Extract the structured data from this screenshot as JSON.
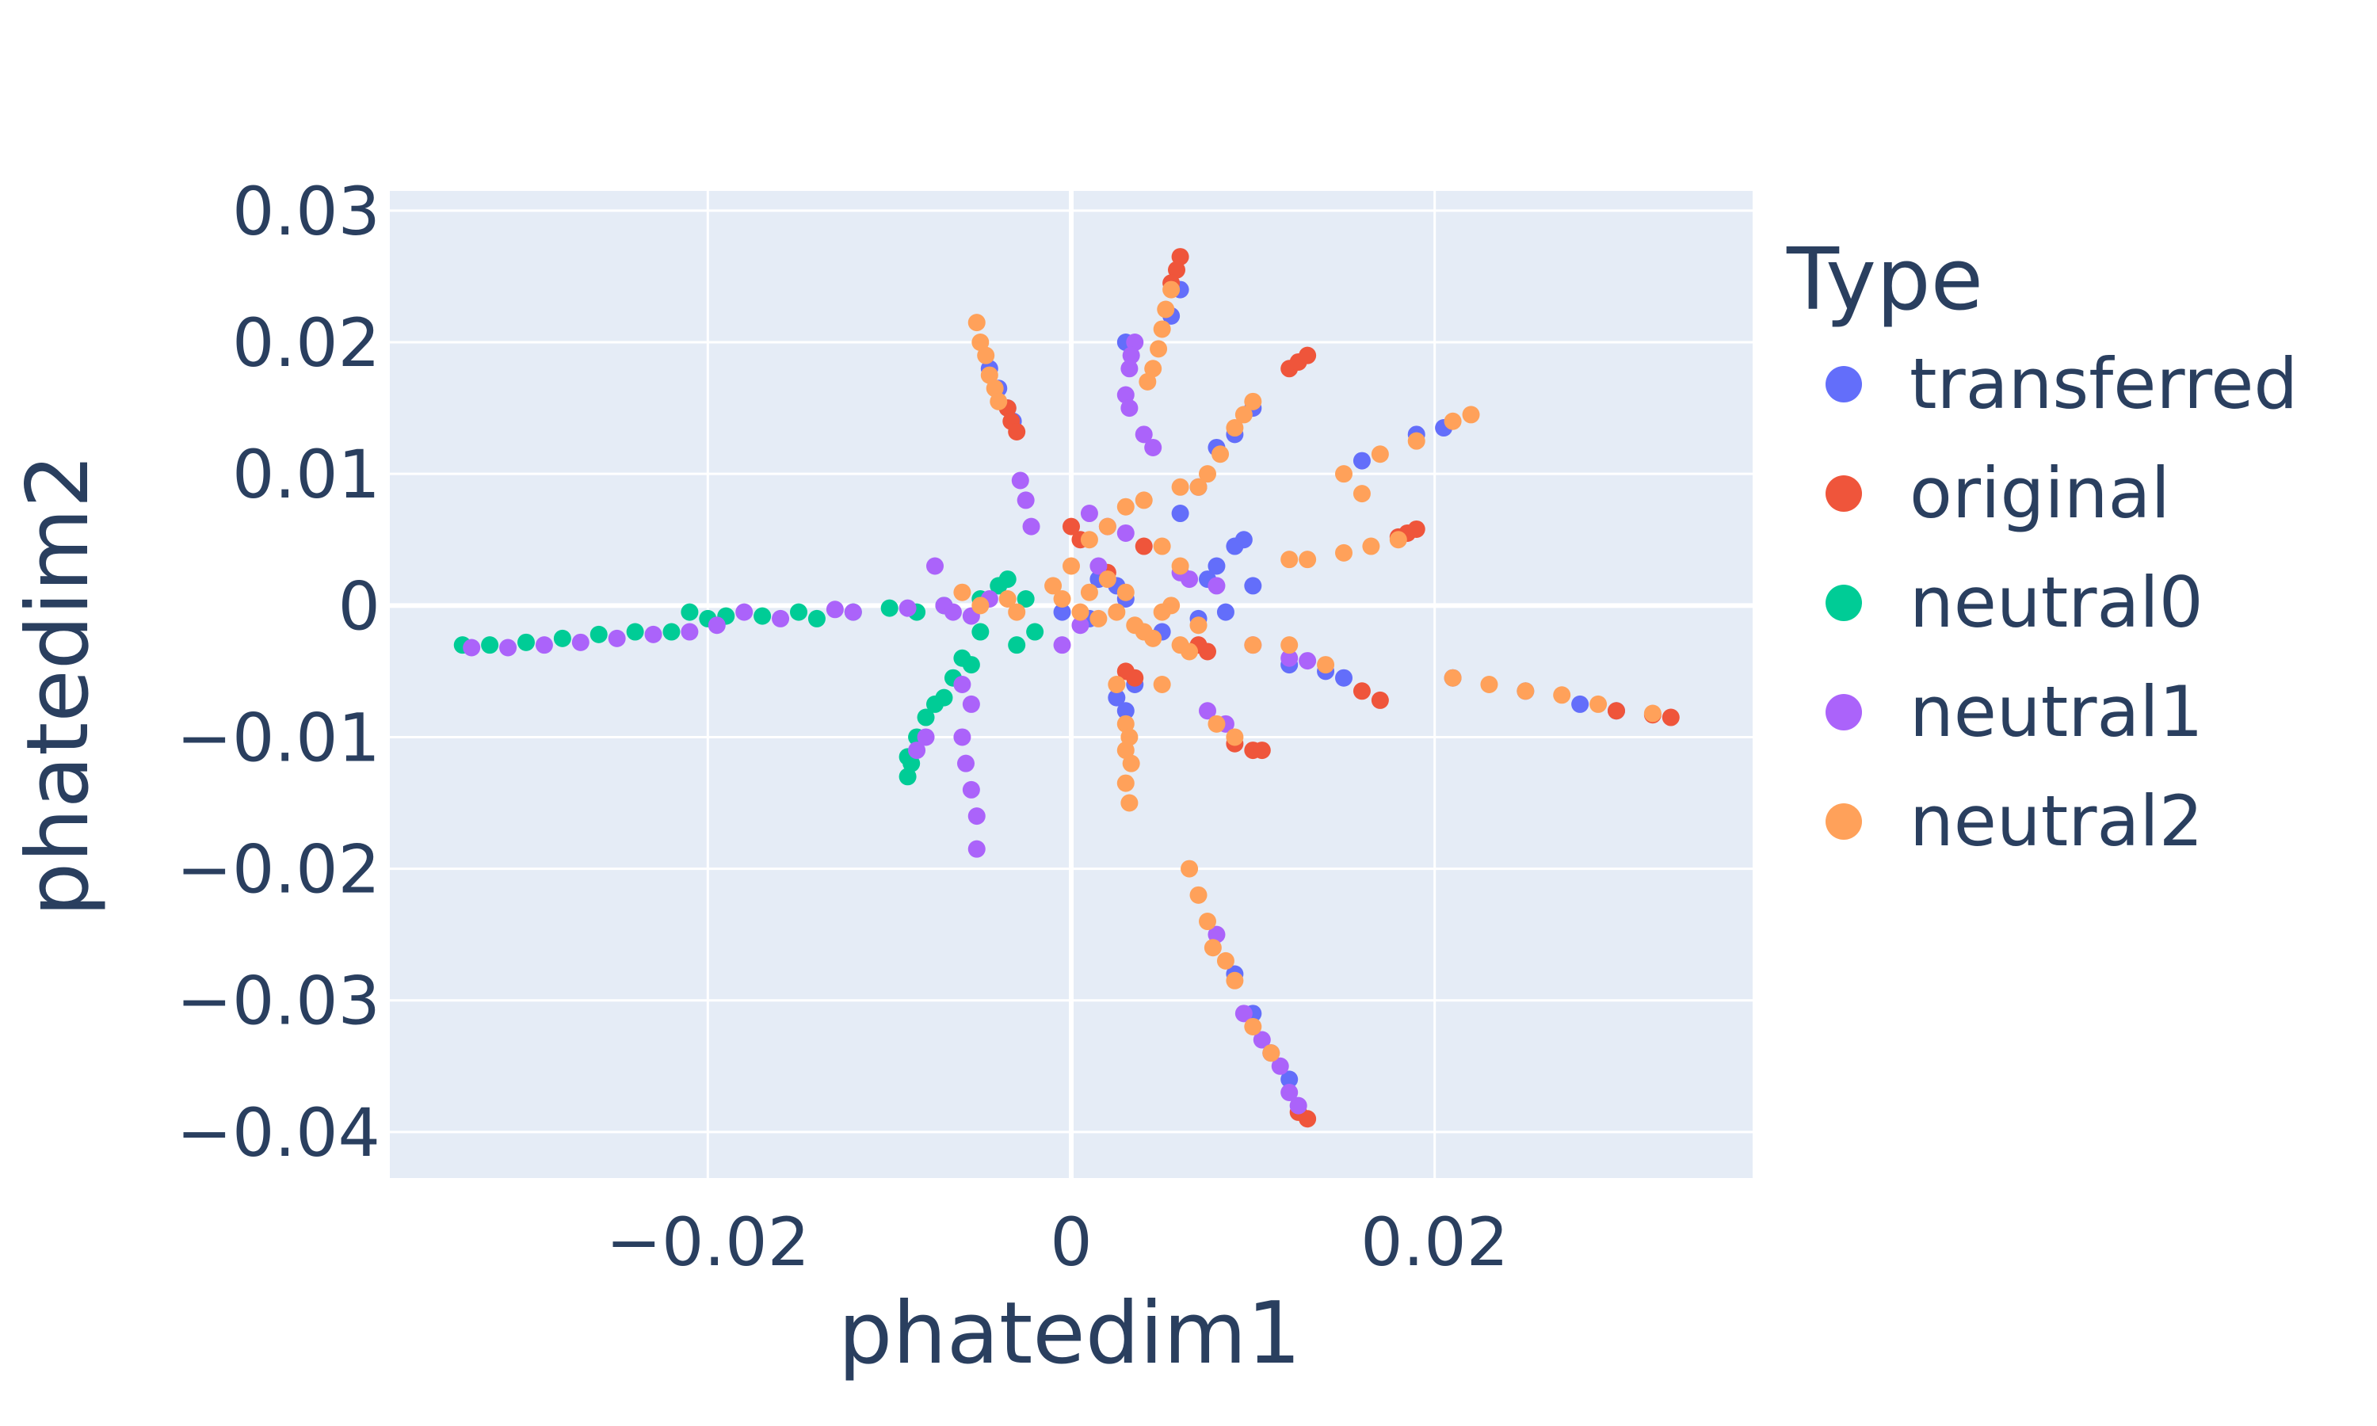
{
  "chart_data": {
    "type": "scatter",
    "xlabel": "phatedim1",
    "ylabel": "phatedim2",
    "xlim": [
      -0.0375,
      0.0375
    ],
    "ylim": [
      -0.0435,
      0.0315
    ],
    "x_ticks": [
      -0.02,
      0,
      0.02
    ],
    "x_tick_labels": [
      "−0.02",
      "0",
      "0.02"
    ],
    "y_ticks": [
      0.03,
      0.02,
      0.01,
      0,
      -0.01,
      -0.02,
      -0.03,
      -0.04
    ],
    "y_tick_labels": [
      "0.03",
      "0.02",
      "0.01",
      "0",
      "−0.01",
      "−0.02",
      "−0.03",
      "−0.04"
    ],
    "grid": true,
    "plot_background": "#e5ecf6",
    "legend": {
      "title": "Type",
      "placement": "right"
    },
    "series": [
      {
        "name": "transferred",
        "color": "#636efa",
        "points": [
          [
            -0.0045,
            0.018
          ],
          [
            -0.004,
            0.0165
          ],
          [
            -0.0035,
            0.015
          ],
          [
            -0.0032,
            0.014
          ],
          [
            0.006,
            0.024
          ],
          [
            0.0055,
            0.022
          ],
          [
            0.003,
            0.02
          ],
          [
            0.008,
            0.012
          ],
          [
            0.009,
            0.013
          ],
          [
            0.01,
            0.015
          ],
          [
            0.007,
            0.009
          ],
          [
            0.006,
            0.007
          ],
          [
            0.008,
            0.003
          ],
          [
            0.009,
            0.0045
          ],
          [
            0.0095,
            0.005
          ],
          [
            0.0075,
            0.002
          ],
          [
            0.01,
            0.0015
          ],
          [
            0.0025,
            -0.007
          ],
          [
            0.003,
            -0.008
          ],
          [
            0.0035,
            -0.006
          ],
          [
            0.005,
            -0.002
          ],
          [
            0.007,
            -0.001
          ],
          [
            0.0085,
            -0.0005
          ],
          [
            0.012,
            -0.0045
          ],
          [
            0.014,
            -0.005
          ],
          [
            0.015,
            -0.0055
          ],
          [
            0.021,
            -0.0055
          ],
          [
            0.025,
            -0.0065
          ],
          [
            0.028,
            -0.0075
          ],
          [
            0.03,
            -0.008
          ],
          [
            0.016,
            0.011
          ],
          [
            0.019,
            0.013
          ],
          [
            0.0205,
            0.0135
          ],
          [
            0.009,
            -0.028
          ],
          [
            0.01,
            -0.031
          ],
          [
            0.011,
            -0.034
          ],
          [
            0.012,
            -0.036
          ],
          [
            0.0015,
            0.002
          ],
          [
            0.003,
            0.0005
          ],
          [
            -0.0005,
            -0.0005
          ],
          [
            0.001,
            -0.001
          ],
          [
            0.0025,
            0.0015
          ]
        ]
      },
      {
        "name": "original",
        "color": "#ef553b",
        "points": [
          [
            0.006,
            0.0265
          ],
          [
            0.0058,
            0.0255
          ],
          [
            0.0055,
            0.0245
          ],
          [
            -0.0035,
            0.015
          ],
          [
            -0.0033,
            0.014
          ],
          [
            -0.003,
            0.0132
          ],
          [
            0.012,
            0.018
          ],
          [
            0.0125,
            0.0185
          ],
          [
            0.013,
            0.019
          ],
          [
            0.0185,
            0.0055
          ],
          [
            0.019,
            0.0058
          ],
          [
            0.018,
            0.0052
          ],
          [
            0.0,
            0.006
          ],
          [
            0.0005,
            0.005
          ],
          [
            0.003,
            -0.005
          ],
          [
            0.0035,
            -0.0055
          ],
          [
            0.007,
            -0.003
          ],
          [
            0.0075,
            -0.0035
          ],
          [
            0.009,
            -0.0105
          ],
          [
            0.01,
            -0.011
          ],
          [
            0.0105,
            -0.011
          ],
          [
            0.016,
            -0.0065
          ],
          [
            0.017,
            -0.0072
          ],
          [
            0.03,
            -0.008
          ],
          [
            0.032,
            -0.0083
          ],
          [
            0.033,
            -0.0085
          ],
          [
            0.0125,
            -0.0385
          ],
          [
            0.013,
            -0.039
          ],
          [
            0.004,
            0.0045
          ],
          [
            0.002,
            0.0025
          ]
        ]
      },
      {
        "name": "neutral0",
        "color": "#00cc96",
        "points": [
          [
            -0.0335,
            -0.003
          ],
          [
            -0.032,
            -0.003
          ],
          [
            -0.03,
            -0.0028
          ],
          [
            -0.028,
            -0.0025
          ],
          [
            -0.026,
            -0.0022
          ],
          [
            -0.024,
            -0.002
          ],
          [
            -0.022,
            -0.002
          ],
          [
            -0.02,
            -0.001
          ],
          [
            -0.021,
            -0.0005
          ],
          [
            -0.019,
            -0.0008
          ],
          [
            -0.017,
            -0.0008
          ],
          [
            -0.015,
            -0.0005
          ],
          [
            -0.014,
            -0.001
          ],
          [
            -0.012,
            -0.0005
          ],
          [
            -0.01,
            -0.0002
          ],
          [
            -0.0085,
            -0.0005
          ],
          [
            -0.007,
            0.0
          ],
          [
            -0.005,
            0.0005
          ],
          [
            -0.004,
            0.0015
          ],
          [
            -0.0035,
            0.002
          ],
          [
            -0.0025,
            0.0005
          ],
          [
            -0.002,
            -0.002
          ],
          [
            -0.003,
            -0.003
          ],
          [
            -0.005,
            -0.002
          ],
          [
            -0.0055,
            -0.0045
          ],
          [
            -0.006,
            -0.004
          ],
          [
            -0.0065,
            -0.0055
          ],
          [
            -0.007,
            -0.007
          ],
          [
            -0.008,
            -0.0085
          ],
          [
            -0.0085,
            -0.01
          ],
          [
            -0.009,
            -0.0115
          ],
          [
            -0.009,
            -0.013
          ],
          [
            -0.0088,
            -0.012
          ],
          [
            -0.0075,
            -0.0075
          ]
        ]
      },
      {
        "name": "neutral1",
        "color": "#ab63fa",
        "points": [
          [
            -0.033,
            -0.0032
          ],
          [
            -0.031,
            -0.0032
          ],
          [
            -0.029,
            -0.003
          ],
          [
            -0.027,
            -0.0028
          ],
          [
            -0.025,
            -0.0025
          ],
          [
            -0.023,
            -0.0022
          ],
          [
            -0.021,
            -0.002
          ],
          [
            -0.0195,
            -0.0015
          ],
          [
            -0.018,
            -0.0005
          ],
          [
            -0.016,
            -0.001
          ],
          [
            -0.013,
            -0.0003
          ],
          [
            -0.012,
            -0.0005
          ],
          [
            -0.009,
            -0.0002
          ],
          [
            -0.007,
            0.0
          ],
          [
            -0.0065,
            -0.0005
          ],
          [
            -0.0055,
            -0.0008
          ],
          [
            -0.0045,
            0.0005
          ],
          [
            -0.0075,
            0.003
          ],
          [
            0.0035,
            0.02
          ],
          [
            0.0033,
            0.019
          ],
          [
            0.0032,
            0.018
          ],
          [
            0.003,
            0.016
          ],
          [
            0.0032,
            0.015
          ],
          [
            0.004,
            0.013
          ],
          [
            0.0045,
            0.012
          ],
          [
            -0.0028,
            0.0095
          ],
          [
            -0.0025,
            0.008
          ],
          [
            -0.0022,
            0.006
          ],
          [
            0.001,
            0.007
          ],
          [
            0.002,
            0.006
          ],
          [
            0.003,
            0.0055
          ],
          [
            0.0065,
            0.002
          ],
          [
            0.008,
            0.0015
          ],
          [
            0.006,
            0.0025
          ],
          [
            0.01,
            -0.003
          ],
          [
            0.012,
            -0.004
          ],
          [
            0.013,
            -0.0042
          ],
          [
            0.0075,
            -0.008
          ],
          [
            0.0085,
            -0.009
          ],
          [
            -0.006,
            -0.006
          ],
          [
            -0.0055,
            -0.0075
          ],
          [
            -0.006,
            -0.01
          ],
          [
            -0.0058,
            -0.012
          ],
          [
            -0.0055,
            -0.014
          ],
          [
            -0.0052,
            -0.016
          ],
          [
            -0.0052,
            -0.0185
          ],
          [
            -0.0085,
            -0.011
          ],
          [
            -0.008,
            -0.01
          ],
          [
            0.0095,
            -0.031
          ],
          [
            0.0105,
            -0.033
          ],
          [
            0.0115,
            -0.035
          ],
          [
            0.012,
            -0.037
          ],
          [
            0.0125,
            -0.038
          ],
          [
            0.008,
            -0.025
          ],
          [
            -0.0005,
            -0.003
          ],
          [
            0.0005,
            -0.0015
          ],
          [
            0.0015,
            0.003
          ]
        ]
      },
      {
        "name": "neutral2",
        "color": "#ffa15a",
        "points": [
          [
            -0.0052,
            0.0215
          ],
          [
            -0.005,
            0.02
          ],
          [
            -0.0047,
            0.019
          ],
          [
            -0.0045,
            0.0175
          ],
          [
            -0.0042,
            0.0165
          ],
          [
            -0.004,
            0.0155
          ],
          [
            0.0055,
            0.024
          ],
          [
            0.0052,
            0.0225
          ],
          [
            0.005,
            0.021
          ],
          [
            0.0048,
            0.0195
          ],
          [
            0.0045,
            0.018
          ],
          [
            0.0042,
            0.017
          ],
          [
            0.01,
            0.0155
          ],
          [
            0.0095,
            0.0145
          ],
          [
            0.009,
            0.0135
          ],
          [
            0.0082,
            0.0115
          ],
          [
            0.0075,
            0.01
          ],
          [
            0.007,
            0.009
          ],
          [
            0.006,
            0.009
          ],
          [
            0.015,
            0.01
          ],
          [
            0.017,
            0.0115
          ],
          [
            0.019,
            0.0125
          ],
          [
            0.021,
            0.014
          ],
          [
            0.022,
            0.0145
          ],
          [
            0.016,
            0.0085
          ],
          [
            0.015,
            0.004
          ],
          [
            0.0165,
            0.0045
          ],
          [
            0.018,
            0.005
          ],
          [
            0.012,
            0.0035
          ],
          [
            0.013,
            0.0035
          ],
          [
            0.006,
            0.003
          ],
          [
            0.005,
            0.0045
          ],
          [
            0.004,
            0.008
          ],
          [
            0.003,
            0.0075
          ],
          [
            0.002,
            0.006
          ],
          [
            0.001,
            0.005
          ],
          [
            0.0,
            0.003
          ],
          [
            -0.001,
            0.0015
          ],
          [
            -0.0005,
            0.0005
          ],
          [
            0.0005,
            -0.0005
          ],
          [
            0.001,
            0.001
          ],
          [
            0.0015,
            -0.001
          ],
          [
            0.002,
            0.002
          ],
          [
            0.0025,
            -0.0005
          ],
          [
            0.003,
            0.001
          ],
          [
            0.0035,
            -0.0015
          ],
          [
            0.004,
            -0.002
          ],
          [
            0.0045,
            -0.0025
          ],
          [
            0.006,
            -0.003
          ],
          [
            0.0065,
            -0.0035
          ],
          [
            0.0055,
            0.0
          ],
          [
            0.003,
            -0.009
          ],
          [
            0.0032,
            -0.01
          ],
          [
            0.003,
            -0.011
          ],
          [
            0.0033,
            -0.012
          ],
          [
            0.003,
            -0.0135
          ],
          [
            0.0032,
            -0.015
          ],
          [
            0.0025,
            -0.006
          ],
          [
            0.005,
            -0.006
          ],
          [
            0.01,
            -0.003
          ],
          [
            0.012,
            -0.003
          ],
          [
            0.014,
            -0.0045
          ],
          [
            0.008,
            -0.009
          ],
          [
            0.009,
            -0.01
          ],
          [
            0.021,
            -0.0055
          ],
          [
            0.023,
            -0.006
          ],
          [
            0.025,
            -0.0065
          ],
          [
            0.027,
            -0.0068
          ],
          [
            0.029,
            -0.0075
          ],
          [
            0.032,
            -0.0082
          ],
          [
            0.0065,
            -0.02
          ],
          [
            0.007,
            -0.022
          ],
          [
            0.0075,
            -0.024
          ],
          [
            0.0078,
            -0.026
          ],
          [
            0.0085,
            -0.027
          ],
          [
            0.009,
            -0.0285
          ],
          [
            0.01,
            -0.032
          ],
          [
            0.011,
            -0.034
          ],
          [
            -0.006,
            0.001
          ],
          [
            -0.005,
            0.0
          ],
          [
            -0.0035,
            0.0005
          ],
          [
            -0.003,
            -0.0005
          ],
          [
            0.005,
            -0.0005
          ],
          [
            0.007,
            -0.0015
          ]
        ]
      }
    ]
  }
}
